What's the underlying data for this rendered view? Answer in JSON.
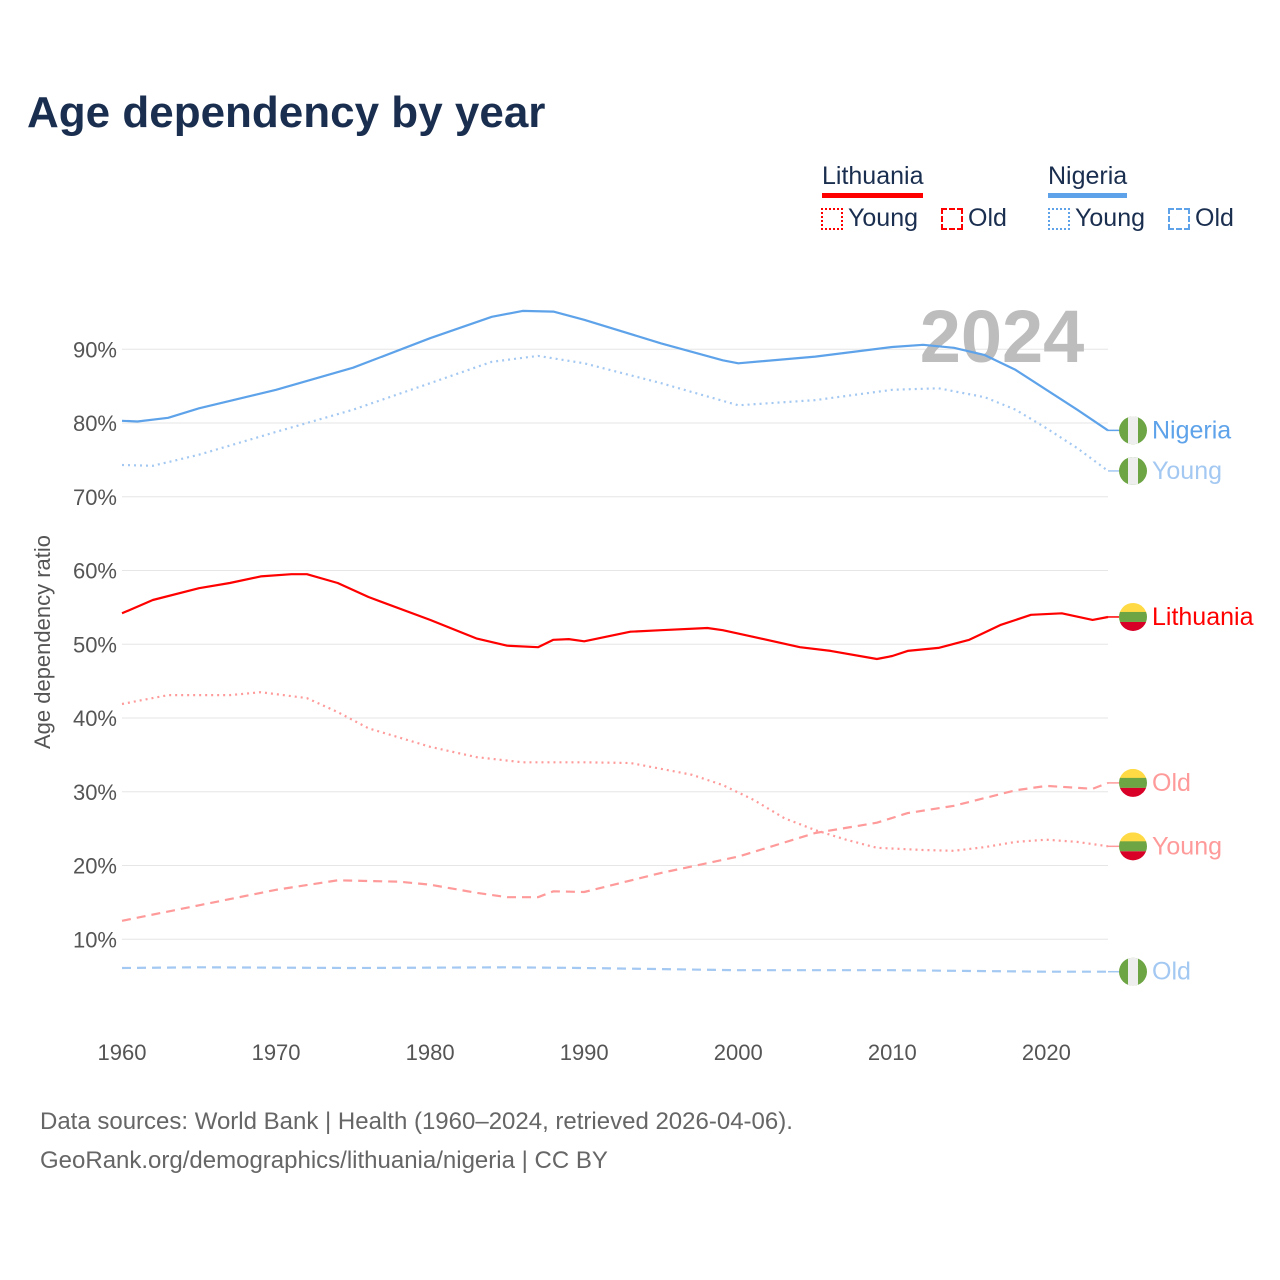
{
  "title": "Age dependency by year",
  "legend": {
    "groups": [
      {
        "country": "Lithuania",
        "color": "#ff0000",
        "young": "Young",
        "old": "Old"
      },
      {
        "country": "Nigeria",
        "color": "#5ea3ea",
        "young": "Young",
        "old": "Old"
      }
    ]
  },
  "footer": {
    "line1": "Data sources: World Bank | Health (1960–2024, retrieved 2026-04-06).",
    "line2": "GeoRank.org/demographics/lithuania/nigeria | CC BY"
  },
  "chart_data": {
    "type": "line",
    "title": "Age dependency by year",
    "ylabel": "Age dependency ratio",
    "xlabel": "",
    "year_overlay": "2024",
    "xlim": [
      1960,
      2024
    ],
    "ylim": [
      0,
      100
    ],
    "x_ticks": [
      "1960",
      "1970",
      "1980",
      "1990",
      "2000",
      "2010",
      "2020"
    ],
    "y_ticks": [
      "10%",
      "20%",
      "30%",
      "40%",
      "50%",
      "60%",
      "70%",
      "80%",
      "90%"
    ],
    "grid": true,
    "series": [
      {
        "name": "Nigeria",
        "end_label": "Nigeria",
        "country": "Nigeria",
        "style": "solid",
        "color": "#5ea3ea",
        "points": [
          [
            1960,
            80.3
          ],
          [
            1961,
            80.2
          ],
          [
            1963,
            80.7
          ],
          [
            1965,
            82
          ],
          [
            1970,
            84.5
          ],
          [
            1975,
            87.5
          ],
          [
            1980,
            91.5
          ],
          [
            1984,
            94.4
          ],
          [
            1986,
            95.2
          ],
          [
            1988,
            95.1
          ],
          [
            1990,
            94
          ],
          [
            1995,
            90.8
          ],
          [
            1999,
            88.5
          ],
          [
            2000,
            88.1
          ],
          [
            2005,
            89
          ],
          [
            2010,
            90.3
          ],
          [
            2012,
            90.6
          ],
          [
            2014,
            90.2
          ],
          [
            2016,
            89.2
          ],
          [
            2018,
            87.2
          ],
          [
            2020,
            84.5
          ],
          [
            2022,
            81.8
          ],
          [
            2024,
            79
          ]
        ]
      },
      {
        "name": "Nigeria Young",
        "end_label": "Young",
        "country": "Nigeria",
        "style": "dotted",
        "color": "#a3c8f2",
        "points": [
          [
            1960,
            74.3
          ],
          [
            1962,
            74.2
          ],
          [
            1965,
            75.7
          ],
          [
            1970,
            78.8
          ],
          [
            1975,
            81.8
          ],
          [
            1980,
            85.4
          ],
          [
            1984,
            88.3
          ],
          [
            1987,
            89.1
          ],
          [
            1990,
            88.1
          ],
          [
            1995,
            85.4
          ],
          [
            2000,
            82.4
          ],
          [
            2005,
            83.1
          ],
          [
            2010,
            84.5
          ],
          [
            2013,
            84.7
          ],
          [
            2016,
            83.5
          ],
          [
            2018,
            81.8
          ],
          [
            2020,
            79.3
          ],
          [
            2022,
            76.6
          ],
          [
            2024,
            73.5
          ]
        ]
      },
      {
        "name": "Nigeria Old",
        "end_label": "Old",
        "country": "Nigeria",
        "style": "dashed",
        "color": "#a3c8f2",
        "points": [
          [
            1960,
            6.1
          ],
          [
            1965,
            6.2
          ],
          [
            1975,
            6.1
          ],
          [
            1985,
            6.2
          ],
          [
            1990,
            6.1
          ],
          [
            2000,
            5.8
          ],
          [
            2010,
            5.8
          ],
          [
            2020,
            5.6
          ],
          [
            2024,
            5.6
          ]
        ]
      },
      {
        "name": "Lithuania",
        "end_label": "Lithuania",
        "country": "Lithuania",
        "style": "solid",
        "color": "#ff0000",
        "points": [
          [
            1960,
            54.2
          ],
          [
            1962,
            56
          ],
          [
            1965,
            57.6
          ],
          [
            1967,
            58.3
          ],
          [
            1969,
            59.2
          ],
          [
            1971,
            59.5
          ],
          [
            1972,
            59.5
          ],
          [
            1974,
            58.3
          ],
          [
            1976,
            56.4
          ],
          [
            1980,
            53.3
          ],
          [
            1983,
            50.8
          ],
          [
            1985,
            49.8
          ],
          [
            1987,
            49.6
          ],
          [
            1988,
            50.6
          ],
          [
            1989,
            50.7
          ],
          [
            1990,
            50.4
          ],
          [
            1993,
            51.7
          ],
          [
            1995,
            51.9
          ],
          [
            1998,
            52.2
          ],
          [
            1999,
            51.9
          ],
          [
            2001,
            51
          ],
          [
            2004,
            49.6
          ],
          [
            2006,
            49.1
          ],
          [
            2009,
            48
          ],
          [
            2010,
            48.4
          ],
          [
            2011,
            49.1
          ],
          [
            2013,
            49.5
          ],
          [
            2015,
            50.6
          ],
          [
            2017,
            52.6
          ],
          [
            2019,
            54
          ],
          [
            2021,
            54.2
          ],
          [
            2023,
            53.3
          ],
          [
            2024,
            53.7
          ]
        ]
      },
      {
        "name": "Lithuania Old",
        "end_label": "Old",
        "country": "Lithuania",
        "style": "dashed",
        "color": "#ff9a9a",
        "points": [
          [
            1960,
            12.5
          ],
          [
            1965,
            14.6
          ],
          [
            1970,
            16.7
          ],
          [
            1974,
            18
          ],
          [
            1978,
            17.8
          ],
          [
            1980,
            17.4
          ],
          [
            1983,
            16.3
          ],
          [
            1985,
            15.7
          ],
          [
            1987,
            15.7
          ],
          [
            1988,
            16.5
          ],
          [
            1990,
            16.4
          ],
          [
            1995,
            19
          ],
          [
            2000,
            21.2
          ],
          [
            2005,
            24.4
          ],
          [
            2009,
            25.8
          ],
          [
            2011,
            27.1
          ],
          [
            2014,
            28.1
          ],
          [
            2018,
            30.2
          ],
          [
            2020,
            30.8
          ],
          [
            2023,
            30.4
          ],
          [
            2024,
            31.2
          ]
        ]
      },
      {
        "name": "Lithuania Young",
        "end_label": "Young",
        "country": "Lithuania",
        "style": "dotted",
        "color": "#ff9a9a",
        "points": [
          [
            1960,
            41.9
          ],
          [
            1963,
            43.1
          ],
          [
            1967,
            43.1
          ],
          [
            1969,
            43.5
          ],
          [
            1972,
            42.7
          ],
          [
            1974,
            40.8
          ],
          [
            1976,
            38.6
          ],
          [
            1980,
            36.1
          ],
          [
            1983,
            34.7
          ],
          [
            1986,
            34
          ],
          [
            1990,
            34
          ],
          [
            1993,
            33.9
          ],
          [
            1997,
            32.3
          ],
          [
            1999,
            30.9
          ],
          [
            2001,
            28.9
          ],
          [
            2003,
            26.4
          ],
          [
            2005,
            24.8
          ],
          [
            2007,
            23.5
          ],
          [
            2009,
            22.4
          ],
          [
            2012,
            22.1
          ],
          [
            2014,
            22
          ],
          [
            2016,
            22.5
          ],
          [
            2018,
            23.2
          ],
          [
            2020,
            23.5
          ],
          [
            2022,
            23.2
          ],
          [
            2024,
            22.6
          ]
        ]
      }
    ]
  }
}
